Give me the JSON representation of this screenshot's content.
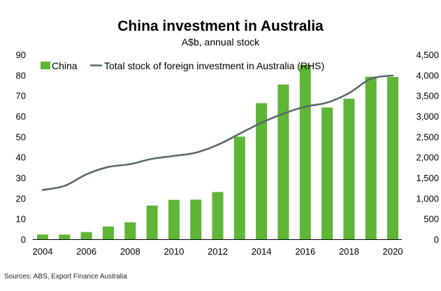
{
  "chart_data": {
    "type": "bar",
    "title": "China investment in Australia",
    "subtitle": "A$b, annual stock",
    "source": "Sources: ABS, Export Finance Australia",
    "x": [
      2004,
      2005,
      2006,
      2007,
      2008,
      2009,
      2010,
      2011,
      2012,
      2013,
      2014,
      2015,
      2016,
      2017,
      2018,
      2019,
      2020
    ],
    "x_ticks": [
      "2004",
      "2006",
      "2008",
      "2010",
      "2012",
      "2014",
      "2016",
      "2018",
      "2020"
    ],
    "ylim_left": [
      0,
      90
    ],
    "yticks_left": [
      "0",
      "10",
      "20",
      "30",
      "40",
      "50",
      "60",
      "70",
      "80",
      "90"
    ],
    "ylim_right": [
      0,
      4500
    ],
    "yticks_right": [
      "0",
      "500",
      "1,000",
      "1,500",
      "2,000",
      "2,500",
      "3,000",
      "3,500",
      "4,000",
      "4,500"
    ],
    "grid": false,
    "legend_position": "top-left",
    "series": [
      {
        "name": "China",
        "kind": "bar",
        "axis": "left",
        "color": "#5eb536",
        "values": [
          2.3,
          2.3,
          3.5,
          6.2,
          8.3,
          16.4,
          19.2,
          19.3,
          23.0,
          50.0,
          66.3,
          75.4,
          85.0,
          64.2,
          68.5,
          79.2,
          79.1
        ]
      },
      {
        "name": "Total stock of foreign investment in Australia (RHS)",
        "kind": "line",
        "axis": "right",
        "color": "#5a6a6a",
        "values": [
          1200,
          1300,
          1580,
          1760,
          1830,
          1960,
          2030,
          2110,
          2300,
          2570,
          2840,
          3060,
          3230,
          3330,
          3560,
          3910,
          3990
        ]
      }
    ]
  }
}
